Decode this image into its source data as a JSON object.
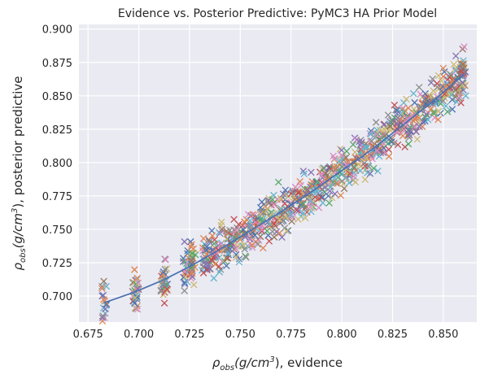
{
  "chart_data": {
    "type": "scatter",
    "title": "Evidence vs. Posterior Predictive: PyMC3 HA Prior Model",
    "xlabel": {
      "rho": "ρ",
      "sub": "obs",
      "unit_open": "(g/cm",
      "sup": "3",
      "unit_close": "), evidence"
    },
    "ylabel": {
      "rho": "ρ",
      "sub": "obs",
      "unit_open": "(g/cm",
      "sup": "3",
      "unit_close": "), posterior predictive"
    },
    "xlim": [
      0.6705,
      0.8665
    ],
    "ylim": [
      0.6805,
      0.9035
    ],
    "xticks": [
      "0.675",
      "0.700",
      "0.725",
      "0.750",
      "0.775",
      "0.800",
      "0.825",
      "0.850"
    ],
    "yticks": [
      "0.700",
      "0.725",
      "0.750",
      "0.775",
      "0.800",
      "0.825",
      "0.850",
      "0.875",
      "0.900"
    ],
    "grid": true,
    "background": "#eaeaf2",
    "marker": "x",
    "palette": [
      "#4c72b0",
      "#dd8452",
      "#55a868",
      "#c44e52",
      "#8172b3",
      "#937860",
      "#da8bc3",
      "#8c8c8c",
      "#ccb974",
      "#64b5cd"
    ],
    "trend_line": {
      "color": "#4c72b0",
      "x": [
        0.683,
        0.698,
        0.712,
        0.725,
        0.74,
        0.755,
        0.77,
        0.785,
        0.8,
        0.815,
        0.83,
        0.845,
        0.86
      ],
      "y": [
        0.695,
        0.703,
        0.712,
        0.722,
        0.735,
        0.749,
        0.763,
        0.778,
        0.794,
        0.81,
        0.828,
        0.846,
        0.866
      ]
    },
    "cluster_x": [
      0.683,
      0.698,
      0.699,
      0.712,
      0.713,
      0.723,
      0.725,
      0.727,
      0.732,
      0.734,
      0.737,
      0.74,
      0.743,
      0.746,
      0.749,
      0.752,
      0.755,
      0.758,
      0.761,
      0.764,
      0.767,
      0.77,
      0.773,
      0.776,
      0.779,
      0.782,
      0.785,
      0.788,
      0.791,
      0.794,
      0.797,
      0.8,
      0.803,
      0.806,
      0.809,
      0.812,
      0.815,
      0.818,
      0.821,
      0.824,
      0.827,
      0.83,
      0.833,
      0.836,
      0.839,
      0.842,
      0.845,
      0.848,
      0.851,
      0.854,
      0.857,
      0.859,
      0.86
    ],
    "point_y_spread": 0.016,
    "markers_per_x": 18
  }
}
